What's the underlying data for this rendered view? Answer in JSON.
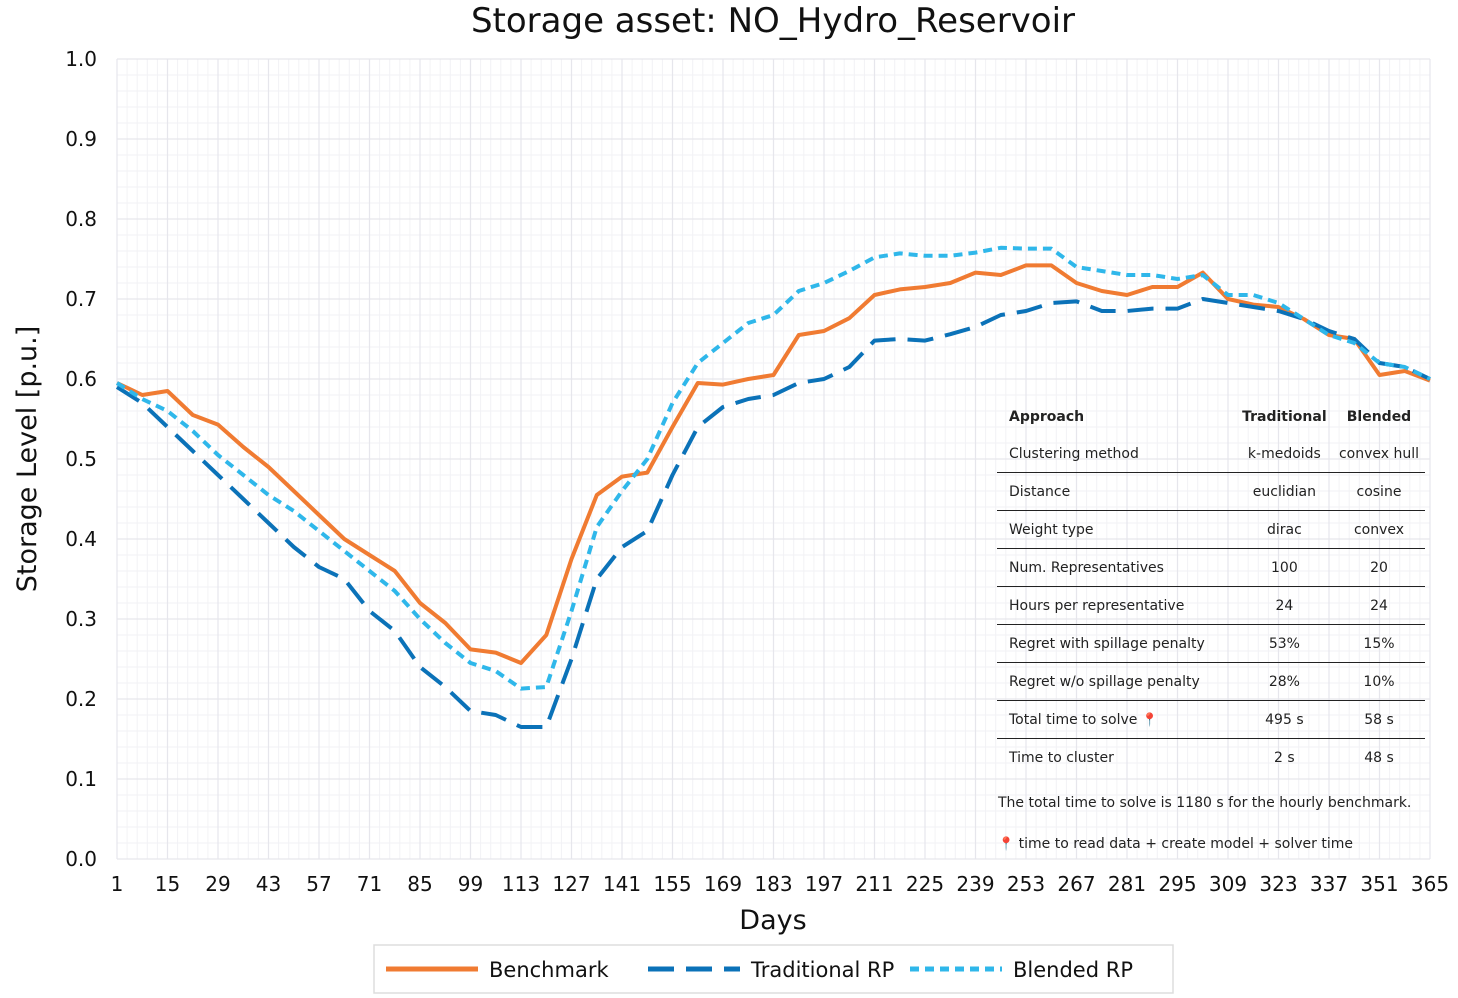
{
  "chart_data": {
    "type": "line",
    "title": "Storage asset: NO_Hydro_Reservoir",
    "xlabel": "Days",
    "ylabel": "Storage Level [p.u.]",
    "xlim": [
      1,
      365
    ],
    "ylim": [
      0,
      1
    ],
    "grid": true,
    "legend_placement": "bottom",
    "x_ticks": [
      "1",
      "15",
      "29",
      "43",
      "57",
      "71",
      "85",
      "99",
      "113",
      "127",
      "141",
      "155",
      "169",
      "183",
      "197",
      "211",
      "225",
      "239",
      "253",
      "267",
      "281",
      "295",
      "309",
      "323",
      "337",
      "351",
      "365"
    ],
    "y_ticks": [
      "0.0",
      "0.1",
      "0.2",
      "0.3",
      "0.4",
      "0.5",
      "0.6",
      "0.7",
      "0.8",
      "0.9",
      "1.0"
    ],
    "x": [
      1,
      8,
      15,
      22,
      29,
      36,
      43,
      50,
      57,
      64,
      71,
      78,
      85,
      92,
      99,
      106,
      113,
      120,
      127,
      134,
      141,
      148,
      155,
      162,
      169,
      176,
      183,
      190,
      197,
      204,
      211,
      218,
      225,
      232,
      239,
      246,
      253,
      260,
      267,
      274,
      281,
      288,
      295,
      302,
      309,
      316,
      323,
      330,
      337,
      344,
      351,
      358,
      365
    ],
    "series": [
      {
        "name": "Benchmark",
        "color": "#f07b32",
        "style": "solid",
        "values": [
          0.595,
          0.58,
          0.585,
          0.555,
          0.543,
          0.515,
          0.49,
          0.46,
          0.43,
          0.4,
          0.38,
          0.36,
          0.32,
          0.295,
          0.262,
          0.258,
          0.245,
          0.28,
          0.375,
          0.455,
          0.478,
          0.483,
          0.54,
          0.595,
          0.593,
          0.6,
          0.605,
          0.655,
          0.66,
          0.676,
          0.705,
          0.712,
          0.715,
          0.72,
          0.733,
          0.73,
          0.742,
          0.742,
          0.72,
          0.71,
          0.705,
          0.715,
          0.715,
          0.733,
          0.7,
          0.693,
          0.69,
          0.675,
          0.655,
          0.65,
          0.605,
          0.61,
          0.598
        ]
      },
      {
        "name": "Traditional RP",
        "color": "#0b72b8",
        "style": "dashed",
        "values": [
          0.59,
          0.57,
          0.54,
          0.51,
          0.48,
          0.45,
          0.42,
          0.39,
          0.365,
          0.35,
          0.31,
          0.285,
          0.24,
          0.215,
          0.185,
          0.18,
          0.165,
          0.165,
          0.25,
          0.35,
          0.39,
          0.41,
          0.48,
          0.54,
          0.565,
          0.575,
          0.58,
          0.595,
          0.6,
          0.615,
          0.648,
          0.65,
          0.648,
          0.656,
          0.665,
          0.68,
          0.685,
          0.695,
          0.697,
          0.685,
          0.685,
          0.688,
          0.688,
          0.7,
          0.695,
          0.69,
          0.685,
          0.675,
          0.66,
          0.65,
          0.62,
          0.615,
          0.6
        ]
      },
      {
        "name": "Blended RP",
        "color": "#2fb7ea",
        "style": "dotted",
        "values": [
          0.595,
          0.575,
          0.56,
          0.535,
          0.505,
          0.48,
          0.455,
          0.435,
          0.41,
          0.385,
          0.36,
          0.335,
          0.3,
          0.27,
          0.245,
          0.235,
          0.213,
          0.215,
          0.31,
          0.415,
          0.46,
          0.5,
          0.57,
          0.62,
          0.645,
          0.67,
          0.68,
          0.71,
          0.72,
          0.735,
          0.752,
          0.757,
          0.754,
          0.754,
          0.758,
          0.764,
          0.763,
          0.763,
          0.74,
          0.735,
          0.73,
          0.73,
          0.725,
          0.73,
          0.705,
          0.705,
          0.695,
          0.675,
          0.655,
          0.645,
          0.62,
          0.615,
          0.6
        ]
      }
    ]
  },
  "table": {
    "header": [
      "Approach",
      "Traditional",
      "Blended"
    ],
    "rows": [
      [
        "Clustering method",
        "k-medoids",
        "convex hull"
      ],
      [
        "Distance",
        "euclidian",
        "cosine"
      ],
      [
        "Weight type",
        "dirac",
        "convex"
      ],
      [
        "Num. Representatives",
        "100",
        "20"
      ],
      [
        "Hours per representative",
        "24",
        "24"
      ],
      [
        "Regret with spillage penalty",
        "53%",
        "15%"
      ],
      [
        "Regret w/o spillage penalty",
        "28%",
        "10%"
      ],
      [
        "Total time to solve",
        "495 s",
        "58 s"
      ],
      [
        "Time to cluster",
        "2 s",
        "48 s"
      ]
    ],
    "pin_icon": "pushpin-icon",
    "note1": "The total time to solve is 1180 s for the hourly benchmark.",
    "note2": "time to read data + create model + solver time"
  }
}
